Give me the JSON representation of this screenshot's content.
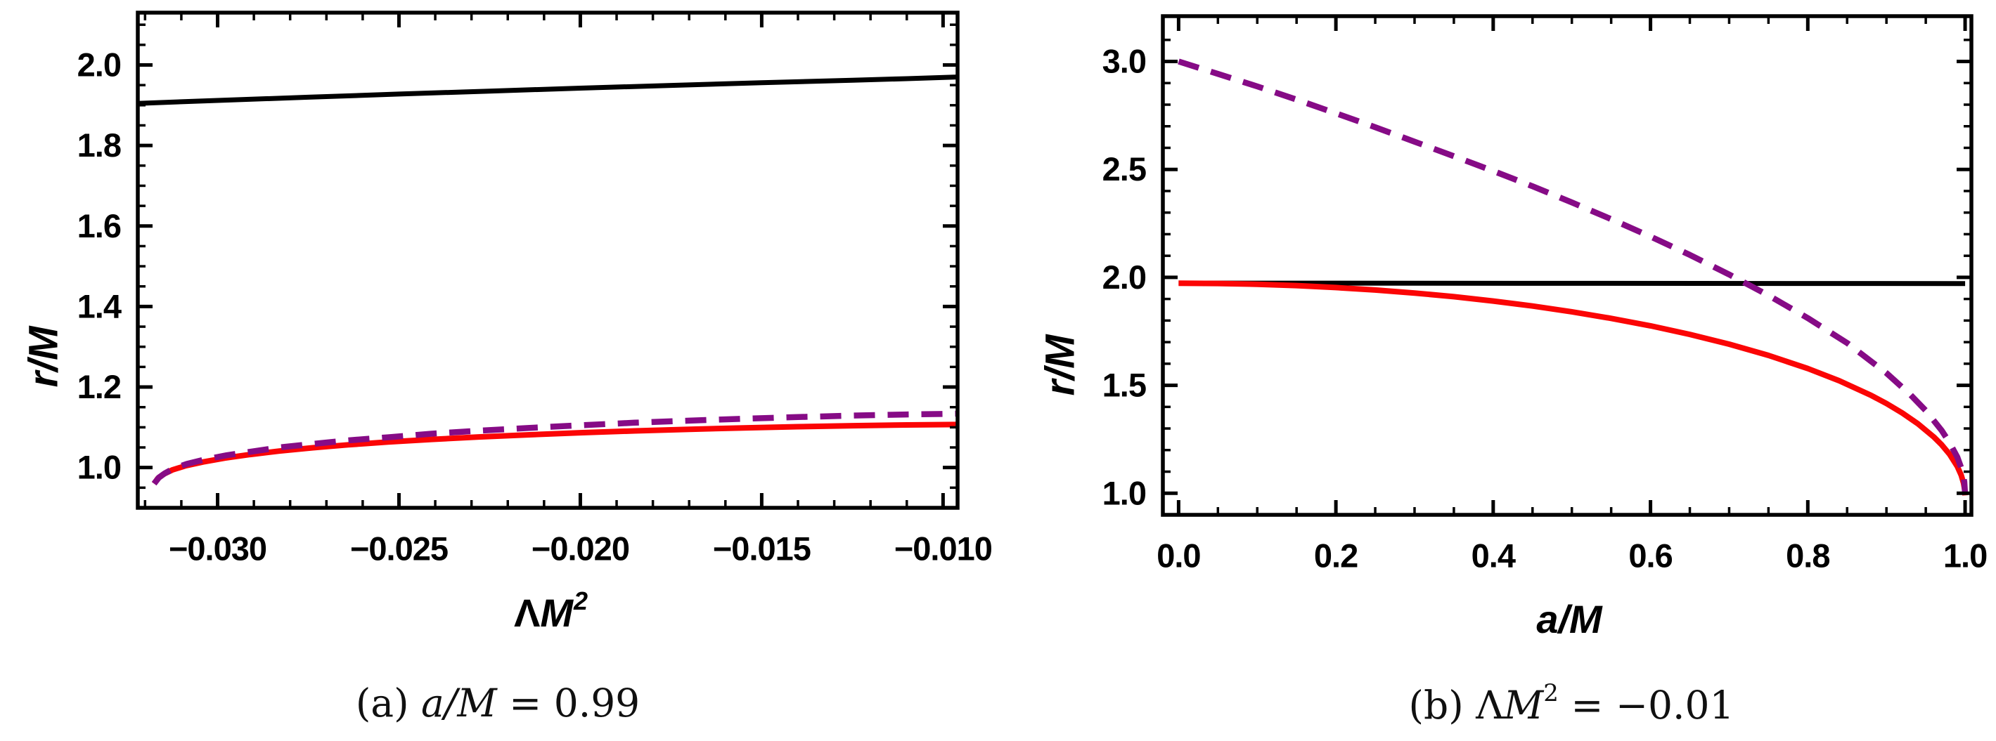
{
  "chart_data": [
    {
      "id": "a",
      "type": "line",
      "title": "",
      "ylabel": "r/M",
      "xlabel": {
        "sym": "Λ",
        "var": "M",
        "sup": "2"
      },
      "caption": {
        "prefix": "(a) ",
        "sym": "",
        "var": "a/M",
        "sup": "",
        "rest": " = 0.99"
      },
      "xlim": [
        -0.0322,
        -0.0096
      ],
      "ylim": [
        0.9,
        2.13
      ],
      "grid": false,
      "legend": null,
      "frame_ticks_all_sides": true,
      "xticks": {
        "values": [
          -0.03,
          -0.025,
          -0.02,
          -0.015,
          -0.01
        ],
        "labels": [
          "−0.030",
          "−0.025",
          "−0.020",
          "−0.015",
          "−0.010"
        ],
        "minor_step": 0.001
      },
      "yticks": {
        "values": [
          1.0,
          1.2,
          1.4,
          1.6,
          1.8,
          2.0
        ],
        "labels": [
          "1.0",
          "1.2",
          "1.4",
          "1.6",
          "1.8",
          "2.0"
        ],
        "minor_step": 0.05
      },
      "series": [
        {
          "name": "black-solid-line",
          "color": "#000000",
          "width": 7,
          "dash": null,
          "points": [
            [
              -0.0322,
              1.9045
            ],
            [
              -0.03,
              1.912
            ],
            [
              -0.0275,
              1.92
            ],
            [
              -0.025,
              1.9278
            ],
            [
              -0.0225,
              1.9352
            ],
            [
              -0.02,
              1.9424
            ],
            [
              -0.0175,
              1.9492
            ],
            [
              -0.015,
              1.9558
            ],
            [
              -0.0125,
              1.9622
            ],
            [
              -0.011,
              1.966
            ],
            [
              -0.0096,
              1.9702
            ]
          ]
        },
        {
          "name": "red-solid-curve",
          "color": "#FB0505",
          "width": 8,
          "dash": null,
          "points": [
            [
              -0.03175,
              0.96
            ],
            [
              -0.03165,
              0.973
            ],
            [
              -0.0315,
              0.983
            ],
            [
              -0.03125,
              0.994
            ],
            [
              -0.0309,
              1.004
            ],
            [
              -0.0304,
              1.014
            ],
            [
              -0.0298,
              1.0235
            ],
            [
              -0.0291,
              1.0325
            ],
            [
              -0.0283,
              1.041
            ],
            [
              -0.0274,
              1.049
            ],
            [
              -0.0264,
              1.0565
            ],
            [
              -0.0253,
              1.0635
            ],
            [
              -0.0241,
              1.07
            ],
            [
              -0.0228,
              1.076
            ],
            [
              -0.0214,
              1.0815
            ],
            [
              -0.02,
              1.0865
            ],
            [
              -0.0185,
              1.091
            ],
            [
              -0.017,
              1.095
            ],
            [
              -0.0155,
              1.0985
            ],
            [
              -0.014,
              1.1015
            ],
            [
              -0.0125,
              1.104
            ],
            [
              -0.011,
              1.1058
            ],
            [
              -0.0096,
              1.107
            ]
          ]
        },
        {
          "name": "purple-dashed-curve",
          "color": "#860B86",
          "width": 8.5,
          "dash": [
            30,
            18
          ],
          "points": [
            [
              -0.03175,
              0.96
            ],
            [
              -0.03162,
              0.975
            ],
            [
              -0.03145,
              0.986
            ],
            [
              -0.0312,
              0.998
            ],
            [
              -0.03085,
              1.009
            ],
            [
              -0.03035,
              1.02
            ],
            [
              -0.02975,
              1.0305
            ],
            [
              -0.029,
              1.0405
            ],
            [
              -0.0283,
              1.05
            ],
            [
              -0.0274,
              1.0585
            ],
            [
              -0.0264,
              1.0675
            ],
            [
              -0.0253,
              1.0752
            ],
            [
              -0.0241,
              1.084
            ],
            [
              -0.0228,
              1.0915
            ],
            [
              -0.0214,
              1.0985
            ],
            [
              -0.02,
              1.105
            ],
            [
              -0.0185,
              1.1115
            ],
            [
              -0.017,
              1.1165
            ],
            [
              -0.0155,
              1.1212
            ],
            [
              -0.014,
              1.1255
            ],
            [
              -0.0125,
              1.129
            ],
            [
              -0.011,
              1.1318
            ],
            [
              -0.0096,
              1.1338
            ]
          ]
        }
      ]
    },
    {
      "id": "b",
      "type": "line",
      "title": "",
      "ylabel": "r/M",
      "xlabel": {
        "sym": "",
        "var": "a/M",
        "sup": ""
      },
      "caption": {
        "prefix": "(b) ",
        "sym": "Λ",
        "var": "M",
        "sup": "2",
        "rest": " = −0.01"
      },
      "xlim": [
        -0.02,
        1.008
      ],
      "ylim": [
        0.9,
        3.21
      ],
      "grid": false,
      "legend": null,
      "frame_ticks_all_sides": true,
      "xticks": {
        "values": [
          0.0,
          0.2,
          0.4,
          0.6,
          0.8,
          1.0
        ],
        "labels": [
          "0.0",
          "0.2",
          "0.4",
          "0.6",
          "0.8",
          "1.0"
        ],
        "minor_step": 0.05
      },
      "yticks": {
        "values": [
          1.0,
          1.5,
          2.0,
          2.5,
          3.0
        ],
        "labels": [
          "1.0",
          "1.5",
          "2.0",
          "2.5",
          "3.0"
        ],
        "minor_step": 0.1
      },
      "series": [
        {
          "name": "black-solid-line",
          "color": "#000000",
          "width": 7,
          "dash": null,
          "points": [
            [
              0.0,
              1.9735
            ],
            [
              0.5,
              1.9725
            ],
            [
              1.0,
              1.9715
            ]
          ]
        },
        {
          "name": "red-solid-curve",
          "color": "#FB0505",
          "width": 8,
          "dash": null,
          "points": [
            [
              0.0,
              1.973
            ],
            [
              0.05,
              1.9718
            ],
            [
              0.1,
              1.9681
            ],
            [
              0.15,
              1.9618
            ],
            [
              0.2,
              1.953
            ],
            [
              0.25,
              1.9416
            ],
            [
              0.3,
              1.9275
            ],
            [
              0.35,
              1.9105
            ],
            [
              0.4,
              1.8905
            ],
            [
              0.45,
              1.8673
            ],
            [
              0.5,
              1.8406
            ],
            [
              0.55,
              1.8101
            ],
            [
              0.6,
              1.7754
            ],
            [
              0.65,
              1.7358
            ],
            [
              0.7,
              1.6906
            ],
            [
              0.75,
              1.6385
            ],
            [
              0.8,
              1.5778
            ],
            [
              0.84,
              1.5211
            ],
            [
              0.88,
              1.4543
            ],
            [
              0.9,
              1.4157
            ],
            [
              0.92,
              1.3722
            ],
            [
              0.94,
              1.3221
            ],
            [
              0.96,
              1.2616
            ],
            [
              0.97,
              1.2252
            ],
            [
              0.98,
              1.1816
            ],
            [
              0.99,
              1.1244
            ],
            [
              0.995,
              1.0837
            ],
            [
              0.998,
              1.0475
            ],
            [
              0.9995,
              1.0162
            ],
            [
              1.0,
              0.99
            ]
          ]
        },
        {
          "name": "purple-dashed-curve",
          "color": "#860B86",
          "width": 8.5,
          "dash": [
            30,
            18
          ],
          "points": [
            [
              0.0,
              3.0
            ],
            [
              0.05,
              2.9426
            ],
            [
              0.1,
              2.8846
            ],
            [
              0.15,
              2.8234
            ],
            [
              0.2,
              2.76
            ],
            [
              0.25,
              2.6956
            ],
            [
              0.3,
              2.6286
            ],
            [
              0.35,
              2.5612
            ],
            [
              0.4,
              2.4928
            ],
            [
              0.45,
              2.422
            ],
            [
              0.5,
              2.3472
            ],
            [
              0.55,
              2.2696
            ],
            [
              0.6,
              2.189
            ],
            [
              0.65,
              2.1042
            ],
            [
              0.7,
              2.0134
            ],
            [
              0.75,
              1.9164
            ],
            [
              0.8,
              1.8112
            ],
            [
              0.85,
              1.696
            ],
            [
              0.9,
              1.5566
            ],
            [
              0.93,
              1.4582
            ],
            [
              0.95,
              1.3828
            ],
            [
              0.97,
              1.2918
            ],
            [
              0.98,
              1.2358
            ],
            [
              0.99,
              1.168
            ],
            [
              0.995,
              1.118
            ],
            [
              0.998,
              1.0744
            ],
            [
              0.999,
              1.0532
            ],
            [
              1.0,
              0.992
            ]
          ]
        }
      ]
    }
  ]
}
